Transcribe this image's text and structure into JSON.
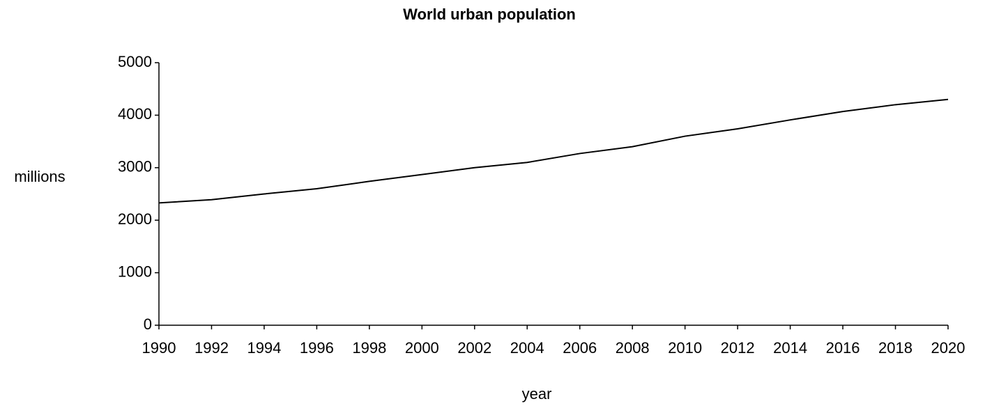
{
  "chart_data": {
    "type": "line",
    "title": "World urban population",
    "x_label": "year",
    "y_label": "millions",
    "x": [
      1990,
      1992,
      1994,
      1996,
      1998,
      2000,
      2002,
      2004,
      2006,
      2008,
      2010,
      2012,
      2014,
      2016,
      2018,
      2020
    ],
    "series": [
      {
        "name": "World urban population",
        "color": "#000000",
        "values": [
          2330,
          2390,
          2500,
          2600,
          2740,
          2870,
          3000,
          3100,
          3270,
          3400,
          3600,
          3740,
          3910,
          4070,
          4200,
          4300
        ]
      }
    ],
    "xlim": [
      1990,
      2020
    ],
    "xticks": [
      1990,
      1992,
      1994,
      1996,
      1998,
      2000,
      2002,
      2004,
      2006,
      2008,
      2010,
      2012,
      2014,
      2016,
      2018,
      2020
    ],
    "ylim": [
      0,
      5000
    ],
    "yticks": [
      0,
      1000,
      2000,
      3000,
      4000,
      5000
    ],
    "grid": false
  }
}
